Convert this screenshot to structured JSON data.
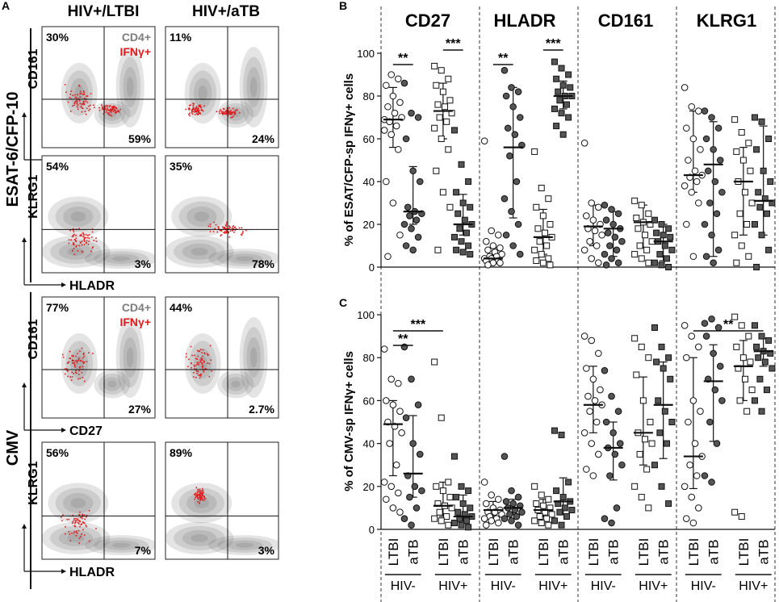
{
  "panelA": {
    "letter": "A",
    "col_labels": [
      "HIV+/LTBI",
      "HIV+/aTB"
    ],
    "group_labels": [
      "ESAT-6/CFP-10",
      "CMV"
    ],
    "legend": [
      "CD4+",
      "IFNγ+"
    ],
    "colors": {
      "cd4": "#8a8a8a",
      "ifng": "#e31a1c"
    },
    "axis_labels": {
      "CD161": "CD161",
      "CD27": "CD27",
      "KLRG1": "KLRG1",
      "HLADR": "HLADR"
    },
    "plots": [
      {
        "pcts": [
          "30%",
          "59%",
          "11%",
          "24%"
        ]
      },
      {
        "pcts": [
          "54%",
          "3%",
          "35%",
          "78%"
        ]
      },
      {
        "pcts": [
          "77%",
          "27%",
          "44%",
          "2.7%"
        ]
      },
      {
        "pcts": [
          "56%",
          "7%",
          "89%",
          "3%"
        ]
      }
    ]
  },
  "panelB": {
    "letter": "B",
    "ylabel": "% of ESAT/CFP-sp IFNγ+ cells",
    "markers": [
      "CD27",
      "HLADR",
      "CD161",
      "KLRG1"
    ],
    "sig": [
      "**",
      "***",
      "**",
      "***"
    ]
  },
  "panelC": {
    "letter": "C",
    "ylabel": "% of CMV-sp IFNγ+ cells",
    "sig": [
      "**",
      "***",
      "**"
    ]
  },
  "xaxis": {
    "cats": [
      "LTBI",
      "aTB",
      "LTBI",
      "aTB"
    ],
    "groups": [
      "HIV-",
      "HIV+"
    ]
  },
  "chart_data": [
    {
      "type": "scatter",
      "title": "ESAT/CFP-sp IFNγ+ cells",
      "ylabel": "% of ESAT/CFP-sp IFNγ+ cells",
      "ylim": [
        0,
        100
      ],
      "yticks": [
        0,
        20,
        40,
        60,
        80,
        100
      ],
      "categories": [
        "LTBI HIV-",
        "aTB HIV-",
        "LTBI HIV+",
        "aTB HIV+"
      ],
      "series": [
        {
          "name": "CD27",
          "points": [
            [
              69,
              90,
              88,
              85,
              80,
              77,
              75,
              72,
              70,
              68,
              66,
              64,
              62,
              55,
              40,
              30,
              15,
              5
            ],
            [
              86,
              72,
              70,
              60,
              45,
              40,
              28,
              26,
              25,
              24,
              22,
              20,
              18,
              14,
              10,
              8
            ],
            [
              94,
              92,
              88,
              85,
              82,
              78,
              76,
              75,
              72,
              70,
              68,
              65,
              60,
              55,
              45,
              35,
              28,
              8
            ],
            [
              64,
              48,
              40,
              35,
              30,
              28,
              25,
              22,
              20,
              18,
              16,
              14,
              12,
              10,
              8,
              7,
              6
            ]
          ],
          "medians": [
            69,
            26,
            73,
            20
          ],
          "q1": [
            56,
            20,
            60,
            15
          ],
          "q3": [
            84,
            47,
            86,
            34
          ]
        },
        {
          "name": "HLADR",
          "points": [
            [
              59,
              17,
              15,
              12,
              10,
              9,
              8,
              7,
              6,
              5,
              5,
              4,
              4,
              3,
              3,
              2,
              2,
              1
            ],
            [
              92,
              84,
              82,
              80,
              75,
              70,
              65,
              62,
              57,
              52,
              40,
              32,
              26,
              20,
              15,
              10,
              6
            ],
            [
              54,
              37,
              32,
              28,
              24,
              20,
              18,
              16,
              14,
              12,
              10,
              8,
              6,
              4,
              3,
              2,
              1
            ],
            [
              96,
              93,
              90,
              88,
              85,
              84,
              82,
              80,
              80,
              78,
              76,
              74,
              72,
              70,
              66,
              62
            ]
          ],
          "medians": [
            4,
            56,
            14,
            80
          ],
          "q1": [
            2,
            23,
            6,
            74
          ],
          "q3": [
            9,
            84,
            27,
            87
          ]
        },
        {
          "name": "CD161",
          "points": [
            [
              58,
              30,
              28,
              24,
              22,
              20,
              18,
              17,
              15,
              12,
              10,
              8,
              4,
              2
            ],
            [
              29,
              27,
              25,
              22,
              20,
              18,
              16,
              14,
              12,
              10,
              8,
              6,
              4,
              2,
              1
            ],
            [
              31,
              29,
              25,
              23,
              21,
              20,
              18,
              15,
              12,
              10,
              8,
              6,
              4,
              2
            ],
            [
              22,
              20,
              18,
              16,
              15,
              14,
              12,
              10,
              8,
              6,
              4,
              2,
              1,
              0
            ]
          ],
          "medians": [
            19,
            18,
            21,
            12
          ],
          "q1": [
            10,
            5,
            9,
            3
          ],
          "q3": [
            29,
            26,
            29,
            20
          ]
        },
        {
          "name": "KLRG1",
          "points": [
            [
              84,
              75,
              73,
              65,
              60,
              55,
              50,
              45,
              43,
              42,
              40,
              38,
              35,
              30,
              20,
              5
            ],
            [
              73,
              70,
              65,
              60,
              55,
              50,
              45,
              40,
              35,
              30,
              25,
              20,
              15,
              8,
              5,
              2
            ],
            [
              69,
              63,
              58,
              54,
              50,
              45,
              40,
              35,
              30,
              25,
              20,
              15,
              10,
              5,
              2
            ],
            [
              70,
              68,
              60,
              55,
              45,
              40,
              35,
              32,
              30,
              28,
              25,
              20,
              15,
              8,
              0
            ]
          ],
          "medians": [
            43,
            48,
            40,
            31
          ],
          "q1": [
            35,
            5,
            15,
            15
          ],
          "q3": [
            73,
            68,
            56,
            66
          ]
        }
      ],
      "significance": [
        {
          "marker": "CD27",
          "pair": [
            "LTBI HIV-",
            "aTB HIV-"
          ],
          "label": "**"
        },
        {
          "marker": "CD27",
          "pair": [
            "LTBI HIV+",
            "aTB HIV+"
          ],
          "label": "***"
        },
        {
          "marker": "HLADR",
          "pair": [
            "LTBI HIV-",
            "aTB HIV-"
          ],
          "label": "**"
        },
        {
          "marker": "HLADR",
          "pair": [
            "LTBI HIV+",
            "aTB HIV+"
          ],
          "label": "***"
        }
      ]
    },
    {
      "type": "scatter",
      "title": "CMV-sp IFNγ+ cells",
      "ylabel": "% of CMV-sp IFNγ+ cells",
      "ylim": [
        0,
        100
      ],
      "yticks": [
        0,
        20,
        40,
        60,
        80,
        100
      ],
      "categories": [
        "LTBI HIV-",
        "aTB HIV-",
        "LTBI HIV+",
        "aTB HIV+"
      ],
      "series": [
        {
          "name": "CD27",
          "points": [
            [
              84,
              70,
              68,
              60,
              58,
              55,
              50,
              48,
              45,
              40,
              30,
              22,
              20,
              17,
              14,
              10,
              8
            ],
            [
              85,
              70,
              58,
              52,
              40,
              35,
              25,
              20,
              18,
              15,
              10,
              5,
              2
            ],
            [
              78,
              52,
              22,
              20,
              18,
              15,
              12,
              11,
              10,
              8,
              6,
              5,
              4,
              2
            ],
            [
              34,
              20,
              18,
              15,
              12,
              10,
              8,
              7,
              6,
              5,
              4,
              3,
              2,
              1
            ]
          ],
          "medians": [
            49,
            26,
            11,
            6
          ],
          "q1": [
            25,
            15,
            6,
            4
          ],
          "q3": [
            60,
            53,
            22,
            16
          ]
        },
        {
          "name": "HLADR",
          "points": [
            [
              22,
              16,
              14,
              12,
              10,
              9,
              8,
              8,
              7,
              6,
              5,
              5,
              4,
              3,
              2
            ],
            [
              34,
              18,
              15,
              13,
              12,
              11,
              10,
              9,
              8,
              7,
              6,
              5,
              4,
              2
            ],
            [
              20,
              16,
              14,
              12,
              11,
              10,
              9,
              8,
              7,
              6,
              5,
              4,
              3,
              2
            ],
            [
              46,
              44,
              22,
              18,
              15,
              13,
              12,
              10,
              9,
              8,
              6,
              4,
              2
            ]
          ],
          "medians": [
            9,
            10,
            9,
            13
          ],
          "q1": [
            6,
            7,
            6,
            7
          ],
          "q3": [
            13,
            14,
            14,
            24
          ]
        },
        {
          "name": "CD161",
          "points": [
            [
              90,
              88,
              82,
              75,
              70,
              65,
              62,
              60,
              58,
              55,
              50,
              45,
              40,
              35,
              28,
              25
            ],
            [
              74,
              62,
              55,
              50,
              45,
              40,
              38,
              35,
              30,
              25,
              10,
              5,
              3
            ],
            [
              89,
              85,
              80,
              72,
              60,
              50,
              45,
              42,
              40,
              35,
              28,
              20,
              15,
              10
            ],
            [
              94,
              85,
              80,
              78,
              75,
              70,
              60,
              55,
              50,
              45,
              40,
              30,
              20,
              12
            ]
          ],
          "medians": [
            58,
            38,
            45,
            58
          ],
          "q1": [
            45,
            23,
            30,
            33
          ],
          "q3": [
            76,
            50,
            71,
            78
          ]
        },
        {
          "name": "KLRG1",
          "points": [
            [
              95,
              90,
              85,
              80,
              60,
              55,
              50,
              40,
              34,
              30,
              25,
              20,
              15,
              10,
              5,
              3
            ],
            [
              96,
              98,
              94,
              90,
              82,
              76,
              70,
              65,
              60,
              50,
              40,
              25,
              22
            ],
            [
              99,
              95,
              90,
              85,
              80,
              78,
              75,
              70,
              65,
              60,
              55,
              8,
              6
            ],
            [
              95,
              90,
              88,
              85,
              83,
              82,
              80,
              78,
              75,
              70,
              65,
              60,
              55
            ]
          ],
          "medians": [
            34,
            69,
            76,
            83
          ],
          "q1": [
            19,
            41,
            60,
            76
          ],
          "q3": [
            80,
            86,
            88,
            89
          ]
        }
      ],
      "significance": [
        {
          "marker": "CD27",
          "pair": [
            "LTBI HIV-",
            "aTB HIV-"
          ],
          "label": "**"
        },
        {
          "marker": "CD27",
          "pair": [
            "LTBI HIV-",
            "LTBI HIV+"
          ],
          "label": "***"
        },
        {
          "marker": "KLRG1",
          "pair": [
            "LTBI HIV-",
            "aTB HIV+"
          ],
          "label": "**"
        }
      ]
    }
  ]
}
